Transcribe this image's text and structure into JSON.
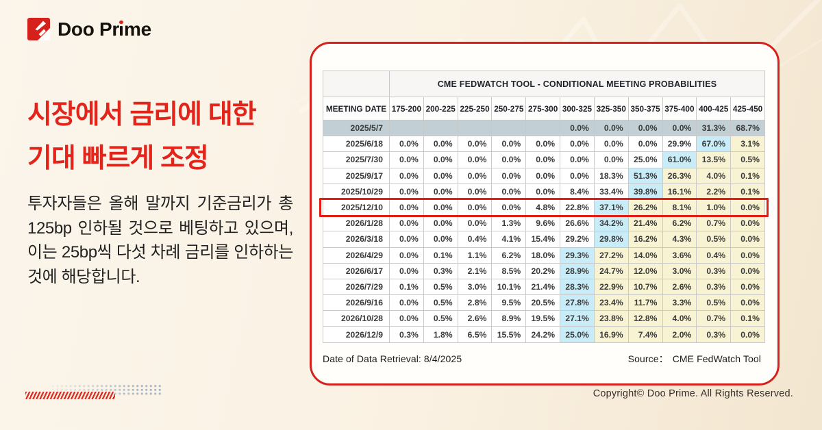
{
  "brand": {
    "wordmark_before_i": "Doo Pr",
    "wordmark_after_i": "me"
  },
  "headline": {
    "line1": "시장에서 금리에 대한",
    "line2": "기대 빠르게 조정"
  },
  "body_text": "투자자들은 올해 말까지 기준금리가 총 125bp 인하될 것으로 베팅하고 있으며, 이는 25bp씩 다섯 차례 금리를 인하하는 것에 해당합니다.",
  "card_footer": {
    "retrieval": "Date of Data Retrieval: 8/4/2025",
    "source_label": "Source：",
    "source_value": "CME FedWatch Tool"
  },
  "copyright": "Copyright© Doo Prime. All Rights Reserved.",
  "chart_data": {
    "type": "table",
    "title": "CME FEDWATCH TOOL - CONDITIONAL MEETING PROBABILITIES",
    "columns": [
      "MEETING DATE",
      "175-200",
      "200-225",
      "225-250",
      "250-275",
      "275-300",
      "300-325",
      "325-350",
      "350-375",
      "375-400",
      "400-425",
      "425-450"
    ],
    "legend_note": "cyan = highest probability cell in row, yellow = cells right of the peak, slate = past meeting row, boxed = red outlined row",
    "rows": [
      {
        "date": "2025/5/7",
        "values": [
          "",
          "",
          "",
          "",
          "",
          "0.0%",
          "0.0%",
          "0.0%",
          "0.0%",
          "31.3%",
          "68.7%"
        ],
        "slate": true,
        "cyan": null,
        "yellow_start": null,
        "boxed": false
      },
      {
        "date": "2025/6/18",
        "values": [
          "0.0%",
          "0.0%",
          "0.0%",
          "0.0%",
          "0.0%",
          "0.0%",
          "0.0%",
          "0.0%",
          "29.9%",
          "67.0%",
          "3.1%"
        ],
        "slate": false,
        "cyan": 9,
        "yellow_start": 10,
        "boxed": false
      },
      {
        "date": "2025/7/30",
        "values": [
          "0.0%",
          "0.0%",
          "0.0%",
          "0.0%",
          "0.0%",
          "0.0%",
          "0.0%",
          "25.0%",
          "61.0%",
          "13.5%",
          "0.5%"
        ],
        "slate": false,
        "cyan": 8,
        "yellow_start": 9,
        "boxed": false
      },
      {
        "date": "2025/9/17",
        "values": [
          "0.0%",
          "0.0%",
          "0.0%",
          "0.0%",
          "0.0%",
          "0.0%",
          "18.3%",
          "51.3%",
          "26.3%",
          "4.0%",
          "0.1%"
        ],
        "slate": false,
        "cyan": 7,
        "yellow_start": 8,
        "boxed": false
      },
      {
        "date": "2025/10/29",
        "values": [
          "0.0%",
          "0.0%",
          "0.0%",
          "0.0%",
          "0.0%",
          "8.4%",
          "33.4%",
          "39.8%",
          "16.1%",
          "2.2%",
          "0.1%"
        ],
        "slate": false,
        "cyan": 7,
        "yellow_start": 8,
        "boxed": false
      },
      {
        "date": "2025/12/10",
        "values": [
          "0.0%",
          "0.0%",
          "0.0%",
          "0.0%",
          "4.8%",
          "22.8%",
          "37.1%",
          "26.2%",
          "8.1%",
          "1.0%",
          "0.0%"
        ],
        "slate": false,
        "cyan": 6,
        "yellow_start": 7,
        "boxed": true
      },
      {
        "date": "2026/1/28",
        "values": [
          "0.0%",
          "0.0%",
          "0.0%",
          "1.3%",
          "9.6%",
          "26.6%",
          "34.2%",
          "21.4%",
          "6.2%",
          "0.7%",
          "0.0%"
        ],
        "slate": false,
        "cyan": 6,
        "yellow_start": 7,
        "boxed": false
      },
      {
        "date": "2026/3/18",
        "values": [
          "0.0%",
          "0.0%",
          "0.4%",
          "4.1%",
          "15.4%",
          "29.2%",
          "29.8%",
          "16.2%",
          "4.3%",
          "0.5%",
          "0.0%"
        ],
        "slate": false,
        "cyan": 6,
        "yellow_start": 7,
        "boxed": false
      },
      {
        "date": "2026/4/29",
        "values": [
          "0.0%",
          "0.1%",
          "1.1%",
          "6.2%",
          "18.0%",
          "29.3%",
          "27.2%",
          "14.0%",
          "3.6%",
          "0.4%",
          "0.0%"
        ],
        "slate": false,
        "cyan": 5,
        "yellow_start": 6,
        "boxed": false
      },
      {
        "date": "2026/6/17",
        "values": [
          "0.0%",
          "0.3%",
          "2.1%",
          "8.5%",
          "20.2%",
          "28.9%",
          "24.7%",
          "12.0%",
          "3.0%",
          "0.3%",
          "0.0%"
        ],
        "slate": false,
        "cyan": 5,
        "yellow_start": 6,
        "boxed": false
      },
      {
        "date": "2026/7/29",
        "values": [
          "0.1%",
          "0.5%",
          "3.0%",
          "10.1%",
          "21.4%",
          "28.3%",
          "22.9%",
          "10.7%",
          "2.6%",
          "0.3%",
          "0.0%"
        ],
        "slate": false,
        "cyan": 5,
        "yellow_start": 6,
        "boxed": false
      },
      {
        "date": "2026/9/16",
        "values": [
          "0.0%",
          "0.5%",
          "2.8%",
          "9.5%",
          "20.5%",
          "27.8%",
          "23.4%",
          "11.7%",
          "3.3%",
          "0.5%",
          "0.0%"
        ],
        "slate": false,
        "cyan": 5,
        "yellow_start": 6,
        "boxed": false
      },
      {
        "date": "2026/10/28",
        "values": [
          "0.0%",
          "0.5%",
          "2.6%",
          "8.9%",
          "19.5%",
          "27.1%",
          "23.8%",
          "12.8%",
          "4.0%",
          "0.7%",
          "0.1%"
        ],
        "slate": false,
        "cyan": 5,
        "yellow_start": 6,
        "boxed": false
      },
      {
        "date": "2026/12/9",
        "values": [
          "0.3%",
          "1.8%",
          "6.5%",
          "15.5%",
          "24.2%",
          "25.0%",
          "16.9%",
          "7.4%",
          "2.0%",
          "0.3%",
          "0.0%"
        ],
        "slate": false,
        "cyan": 5,
        "yellow_start": 6,
        "boxed": false
      }
    ]
  },
  "colors": {
    "brand_red": "#e2241a",
    "card_border_red": "#d6201c",
    "highlight_box_red": "#e51c14",
    "table_cyan": "#c9edf8",
    "table_yellow": "#f7f3d3",
    "table_slate": "#c2d0d5",
    "table_border": "#c9c9c9",
    "bg_cream": "#faf2e4",
    "text_dark": "#222222"
  }
}
